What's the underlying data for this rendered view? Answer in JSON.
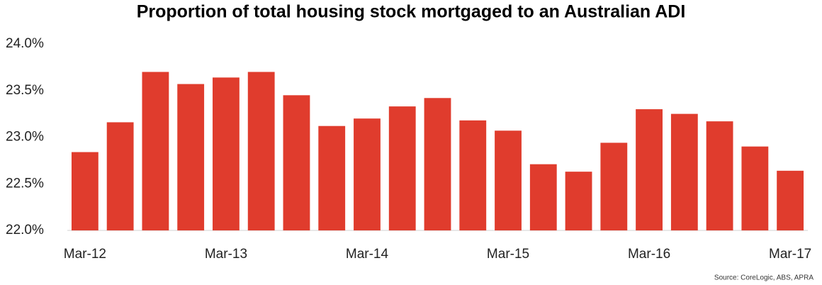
{
  "chart_data": {
    "type": "bar",
    "title": "Proportion of total housing stock mortgaged to an Australian ADI",
    "source": "Source: CoreLogic, ABS, APRA",
    "categories": [
      "Mar-12",
      null,
      null,
      null,
      "Mar-13",
      null,
      null,
      null,
      "Mar-14",
      null,
      null,
      null,
      "Mar-15",
      null,
      null,
      null,
      "Mar-16",
      null,
      null,
      null,
      "Mar-17"
    ],
    "values": [
      22.84,
      23.16,
      23.7,
      23.57,
      23.64,
      23.7,
      23.45,
      23.12,
      23.2,
      23.33,
      23.42,
      23.18,
      23.07,
      22.71,
      22.63,
      22.94,
      23.3,
      23.25,
      23.17,
      22.9,
      22.64
    ],
    "color": "#e03c2d",
    "ylim": [
      22,
      24
    ],
    "yticks": [
      {
        "value": 22,
        "label": "22.0%"
      },
      {
        "value": 22.5,
        "label": "22.5%"
      },
      {
        "value": 23,
        "label": "23.0%"
      },
      {
        "value": 23.5,
        "label": "23.5%"
      },
      {
        "value": 24,
        "label": "24.0%"
      }
    ],
    "grid": false
  }
}
